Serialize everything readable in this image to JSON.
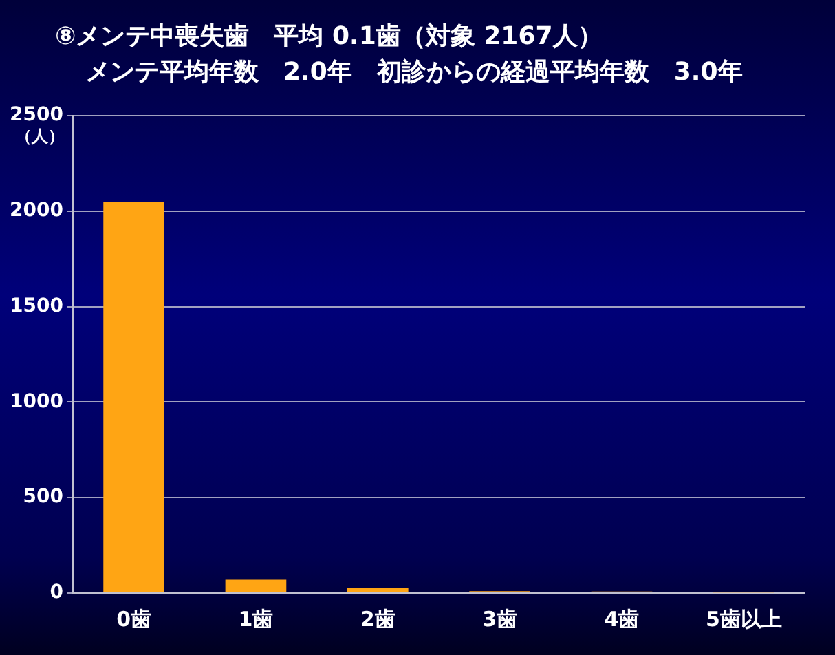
{
  "chart_data": {
    "type": "bar",
    "title": "⑧メンテ中喪失歯　平均 0.1歯（対象 2167人）",
    "subtitle": "メンテ平均年数　2.0年　初診からの経過平均年数　3.0年",
    "ylabel": "（人）",
    "categories": [
      "0歯",
      "1歯",
      "2歯",
      "3歯",
      "4歯",
      "5歯以上"
    ],
    "values": [
      2050,
      70,
      25,
      10,
      8,
      3
    ],
    "color": "#ffa514",
    "ylim": [
      0,
      2500
    ],
    "yticks": [
      0,
      500,
      1000,
      1500,
      2000,
      2500
    ],
    "grid": "y"
  }
}
